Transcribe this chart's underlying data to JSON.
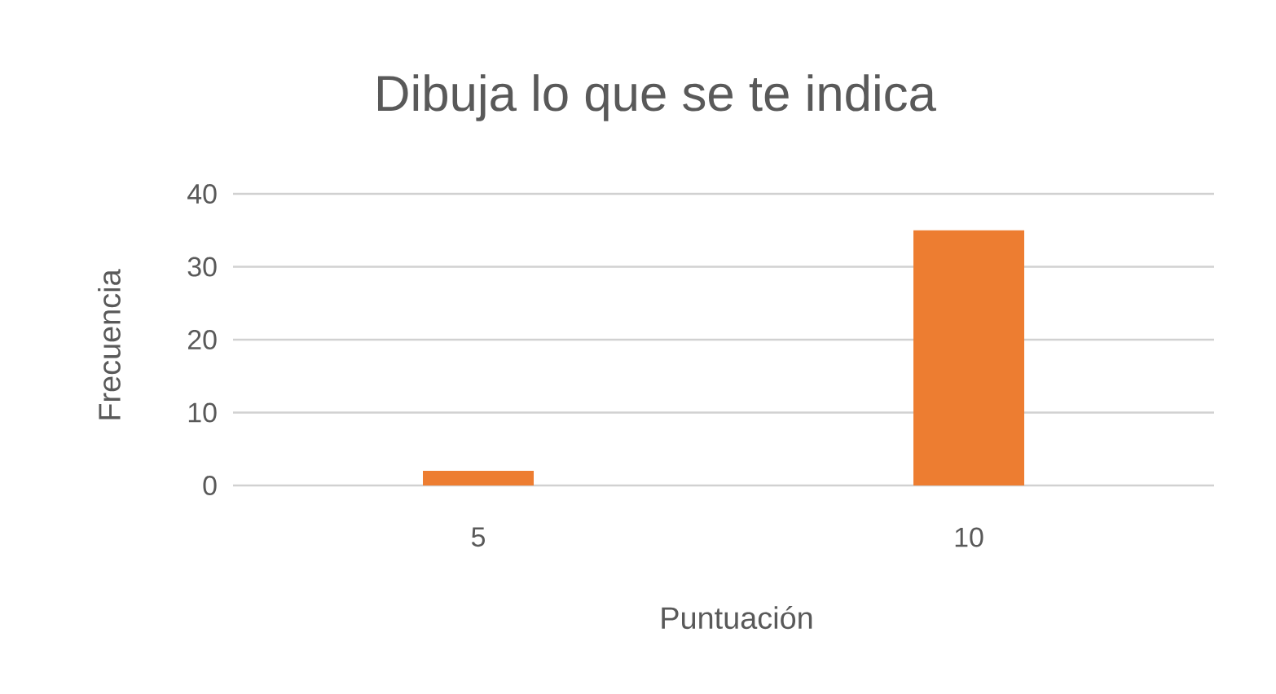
{
  "chart_data": {
    "type": "bar",
    "title": "Dibuja lo que se te indica",
    "xlabel": "Puntuación",
    "ylabel": "Frecuencia",
    "categories": [
      "5",
      "10"
    ],
    "values": [
      2,
      35
    ],
    "color": "#ed7d31",
    "ylim": [
      0,
      40
    ],
    "yticks": [
      0,
      10,
      20,
      30,
      40
    ],
    "grid": "y"
  }
}
